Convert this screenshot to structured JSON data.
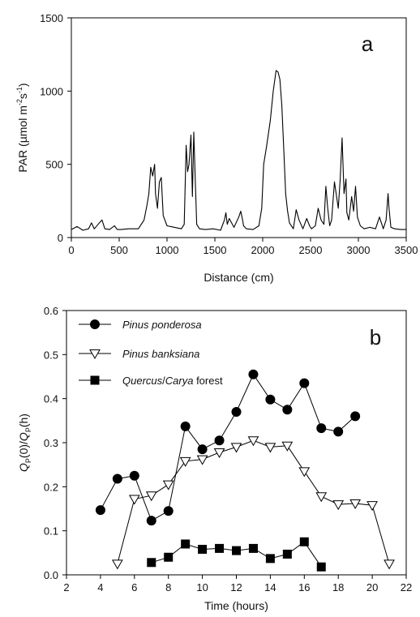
{
  "chart_data": [
    {
      "type": "line",
      "panel_label": "a",
      "xlabel": "Distance (cm)",
      "ylabel": {
        "main": "PAR  (µmol m",
        "sup1": "-2",
        "mid": "s",
        "sup2": "-1",
        "end": ")"
      },
      "xlim": [
        0,
        3500
      ],
      "ylim": [
        0,
        1500
      ],
      "xticks": [
        "0",
        "500",
        "1000",
        "1500",
        "2000",
        "2500",
        "3000",
        "3500"
      ],
      "yticks": [
        "0",
        "500",
        "1000",
        "1500"
      ],
      "color": "#000000",
      "series": [
        {
          "x": [
            0,
            60,
            120,
            180,
            210,
            240,
            280,
            320,
            350,
            400,
            450,
            480,
            520,
            600,
            700,
            760,
            790,
            810,
            830,
            850,
            870,
            880,
            900,
            920,
            940,
            960,
            1000,
            1080,
            1150,
            1180,
            1200,
            1215,
            1230,
            1250,
            1265,
            1280,
            1295,
            1310,
            1340,
            1400,
            1480,
            1560,
            1600,
            1615,
            1630,
            1650,
            1700,
            1750,
            1770,
            1790,
            1800,
            1830,
            1900,
            1960,
            1990,
            2010,
            2040,
            2080,
            2110,
            2140,
            2160,
            2180,
            2200,
            2220,
            2240,
            2260,
            2280,
            2320,
            2350,
            2380,
            2420,
            2460,
            2490,
            2510,
            2550,
            2580,
            2610,
            2640,
            2660,
            2680,
            2700,
            2720,
            2750,
            2790,
            2810,
            2830,
            2850,
            2870,
            2880,
            2900,
            2930,
            2950,
            2970,
            2990,
            3020,
            3060,
            3120,
            3180,
            3220,
            3260,
            3290,
            3310,
            3320,
            3340,
            3380,
            3440,
            3500
          ],
          "y": [
            55,
            75,
            50,
            60,
            100,
            60,
            90,
            120,
            60,
            55,
            80,
            55,
            55,
            60,
            60,
            120,
            220,
            300,
            480,
            420,
            500,
            300,
            200,
            380,
            410,
            150,
            80,
            70,
            60,
            90,
            630,
            450,
            500,
            700,
            280,
            720,
            400,
            90,
            60,
            55,
            60,
            50,
            120,
            170,
            90,
            130,
            70,
            140,
            180,
            120,
            80,
            60,
            55,
            80,
            200,
            500,
            620,
            800,
            1000,
            1140,
            1130,
            1080,
            900,
            600,
            300,
            180,
            100,
            60,
            190,
            120,
            60,
            130,
            80,
            60,
            80,
            200,
            120,
            90,
            350,
            200,
            80,
            120,
            380,
            200,
            400,
            680,
            300,
            400,
            170,
            120,
            280,
            180,
            350,
            140,
            80,
            60,
            70,
            60,
            140,
            60,
            120,
            300,
            200,
            70,
            60,
            55,
            55
          ]
        }
      ]
    },
    {
      "type": "line",
      "panel_label": "b",
      "xlabel": "Time (hours)",
      "ylabel": {
        "q1": "Q",
        "q1sub": "P",
        "q1arg": "(0)/",
        "q2": "Q",
        "q2sub": "P",
        "q2arg": "(h)"
      },
      "xlim": [
        2,
        22
      ],
      "ylim": [
        0,
        0.6
      ],
      "xticks": [
        "2",
        "4",
        "6",
        "8",
        "10",
        "12",
        "14",
        "16",
        "18",
        "20",
        "22"
      ],
      "yticks": [
        "0.0",
        "0.1",
        "0.2",
        "0.3",
        "0.4",
        "0.5",
        "0.6"
      ],
      "series": [
        {
          "name": "Pinus ponderosa",
          "name_style": "italic",
          "marker": "circle",
          "x": [
            4,
            5,
            6,
            7,
            8,
            9,
            10,
            11,
            12,
            13,
            14,
            15,
            16,
            17,
            18,
            19
          ],
          "y": [
            0.147,
            0.218,
            0.225,
            0.123,
            0.145,
            0.337,
            0.285,
            0.305,
            0.37,
            0.455,
            0.398,
            0.375,
            0.435,
            0.333,
            0.325,
            0.36
          ]
        },
        {
          "name": "Pinus banksiana",
          "name_style": "italic",
          "marker": "triangle-down",
          "x": [
            5,
            6,
            7,
            8,
            9,
            10,
            11,
            12,
            13,
            14,
            15,
            16,
            17,
            18,
            19,
            20,
            21
          ],
          "y": [
            0.025,
            0.172,
            0.18,
            0.205,
            0.258,
            0.262,
            0.278,
            0.29,
            0.305,
            0.29,
            0.293,
            0.235,
            0.178,
            0.16,
            0.162,
            0.158,
            0.025
          ]
        },
        {
          "name": "Quercus/Carya forest",
          "name_parts": [
            {
              "text": "Quercus",
              "style": "italic"
            },
            {
              "text": "/",
              "style": "normal"
            },
            {
              "text": "Carya",
              "style": "italic"
            },
            {
              "text": " forest",
              "style": "normal"
            }
          ],
          "marker": "square",
          "x": [
            7,
            8,
            9,
            10,
            11,
            12,
            13,
            14,
            15,
            16,
            17
          ],
          "y": [
            0.028,
            0.04,
            0.07,
            0.058,
            0.06,
            0.055,
            0.06,
            0.037,
            0.047,
            0.075,
            0.018
          ]
        }
      ],
      "legend": "top-left"
    }
  ]
}
